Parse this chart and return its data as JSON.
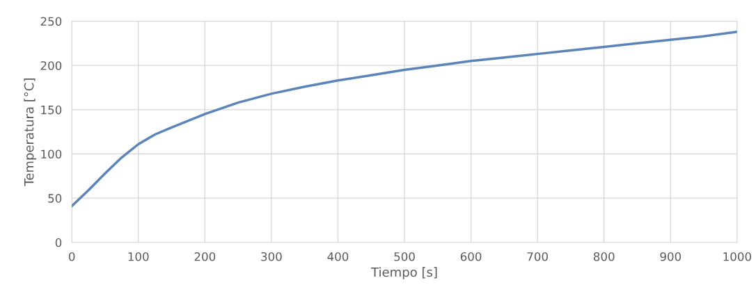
{
  "chart_data": {
    "type": "line",
    "xlabel": "Tiempo [s]",
    "ylabel": "Temperatura [°C]",
    "x": [
      0,
      25,
      50,
      75,
      100,
      125,
      150,
      200,
      250,
      300,
      350,
      400,
      450,
      500,
      550,
      600,
      650,
      700,
      750,
      800,
      850,
      900,
      950,
      1000
    ],
    "series": [
      {
        "color": "#5b84b8",
        "values": [
          41,
          59,
          78,
          96,
          111,
          122,
          130,
          145,
          158,
          168,
          176,
          183,
          189,
          195,
          200,
          205,
          209,
          213,
          217,
          221,
          225,
          229,
          233,
          238
        ]
      }
    ],
    "xlim": [
      0,
      1000
    ],
    "xticks": [
      0,
      100,
      200,
      300,
      400,
      500,
      600,
      700,
      800,
      900,
      1000
    ],
    "ylim": [
      0,
      250
    ],
    "yticks": [
      0,
      50,
      100,
      150,
      200,
      250
    ],
    "grid": true,
    "marker": "none",
    "line_style": "solid"
  }
}
